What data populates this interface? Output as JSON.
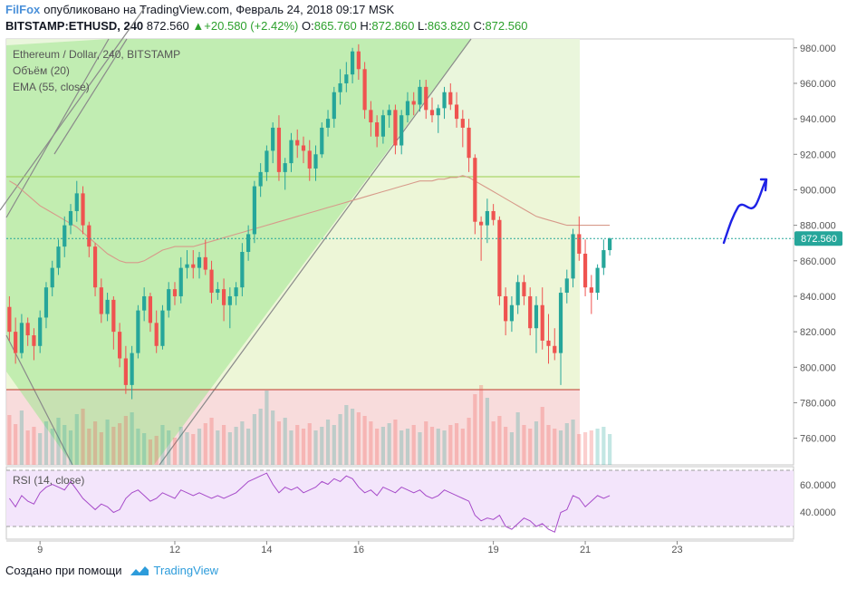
{
  "header": {
    "brand": "FilFox",
    "published_text": "опубликовано на TradingView.com, Февраль 24, 2018 09:17 MSK",
    "symbol_line": "BITSTAMP:ETHUSD, 240",
    "last_price": "872.560",
    "change_arrow": "▲",
    "change": "+20.580 (+2.42%)",
    "o_label": "O:",
    "o_value": "865.760",
    "h_label": "H:",
    "h_value": "872.860",
    "l_label": "L:",
    "l_value": "863.820",
    "c_label": "C:",
    "c_value": "872.560"
  },
  "legend": {
    "title": "Ethereum / Dollar, 240, BITSTAMP",
    "volume": "Объём (20)",
    "ema": "EMA (55, close)",
    "rsi": "RSI (14, close)"
  },
  "footer": {
    "created_with": "Создано при помощи",
    "tradingview": "TradingView"
  },
  "colors": {
    "up": "#26a69a",
    "down": "#ef5350",
    "ema": "#d79a8a",
    "rsi_line": "#a64ac9",
    "rsi_bg": "#f3e5fb",
    "price_label_bg": "#26a69a",
    "drawing": "#1e22e6"
  },
  "chart_data": {
    "type": "candlestick",
    "symbol": "BITSTAMP:ETHUSD",
    "interval": "240",
    "ylim": [
      745,
      985
    ],
    "y_ticks": [
      "980.000",
      "960.000",
      "940.000",
      "920.000",
      "900.000",
      "880.000",
      "860.000",
      "840.000",
      "820.000",
      "800.000",
      "780.000",
      "760.000"
    ],
    "last_price_label": "872.560",
    "last_price": 872.56,
    "x_ticks": [
      "9",
      "12",
      "14",
      "16",
      "19",
      "21",
      "23"
    ],
    "x_tick_index": [
      5,
      27,
      42,
      57,
      79,
      94,
      109
    ],
    "x_range": [
      -0.5,
      128
    ],
    "ohlc": [
      [
        834,
        840,
        815,
        820
      ],
      [
        820,
        828,
        802,
        808
      ],
      [
        808,
        830,
        805,
        825
      ],
      [
        825,
        828,
        812,
        818
      ],
      [
        818,
        822,
        804,
        812
      ],
      [
        812,
        832,
        808,
        828
      ],
      [
        828,
        848,
        822,
        845
      ],
      [
        845,
        860,
        840,
        856
      ],
      [
        856,
        872,
        852,
        868
      ],
      [
        868,
        885,
        862,
        880
      ],
      [
        880,
        892,
        875,
        888
      ],
      [
        888,
        905,
        882,
        898
      ],
      [
        898,
        902,
        875,
        880
      ],
      [
        880,
        882,
        862,
        868
      ],
      [
        868,
        870,
        840,
        845
      ],
      [
        845,
        850,
        825,
        830
      ],
      [
        830,
        842,
        826,
        838
      ],
      [
        838,
        840,
        810,
        820
      ],
      [
        820,
        825,
        800,
        805
      ],
      [
        805,
        812,
        785,
        790
      ],
      [
        790,
        812,
        782,
        808
      ],
      [
        808,
        835,
        805,
        832
      ],
      [
        832,
        845,
        826,
        840
      ],
      [
        840,
        842,
        820,
        825
      ],
      [
        825,
        832,
        808,
        812
      ],
      [
        812,
        835,
        810,
        832
      ],
      [
        832,
        848,
        828,
        844
      ],
      [
        844,
        848,
        835,
        840
      ],
      [
        840,
        862,
        836,
        856
      ],
      [
        856,
        866,
        850,
        858
      ],
      [
        858,
        866,
        850,
        856
      ],
      [
        856,
        865,
        850,
        862
      ],
      [
        862,
        872,
        852,
        855
      ],
      [
        855,
        860,
        836,
        842
      ],
      [
        842,
        848,
        838,
        844
      ],
      [
        844,
        850,
        826,
        835
      ],
      [
        835,
        845,
        822,
        840
      ],
      [
        840,
        848,
        835,
        845
      ],
      [
        845,
        870,
        840,
        865
      ],
      [
        865,
        880,
        860,
        875
      ],
      [
        875,
        905,
        870,
        902
      ],
      [
        902,
        915,
        896,
        910
      ],
      [
        910,
        925,
        905,
        922
      ],
      [
        922,
        938,
        915,
        935
      ],
      [
        935,
        942,
        905,
        910
      ],
      [
        910,
        918,
        900,
        915
      ],
      [
        915,
        932,
        910,
        928
      ],
      [
        928,
        934,
        918,
        925
      ],
      [
        925,
        930,
        915,
        922
      ],
      [
        922,
        928,
        905,
        912
      ],
      [
        912,
        925,
        905,
        920
      ],
      [
        920,
        938,
        918,
        935
      ],
      [
        935,
        945,
        930,
        940
      ],
      [
        940,
        958,
        935,
        955
      ],
      [
        955,
        968,
        948,
        960
      ],
      [
        960,
        972,
        955,
        965
      ],
      [
        965,
        980,
        960,
        978
      ],
      [
        978,
        982,
        962,
        968
      ],
      [
        968,
        972,
        940,
        945
      ],
      [
        945,
        950,
        930,
        938
      ],
      [
        938,
        942,
        924,
        930
      ],
      [
        930,
        945,
        926,
        942
      ],
      [
        942,
        948,
        935,
        945
      ],
      [
        945,
        948,
        920,
        925
      ],
      [
        925,
        945,
        920,
        942
      ],
      [
        942,
        955,
        938,
        950
      ],
      [
        950,
        955,
        942,
        948
      ],
      [
        948,
        962,
        944,
        958
      ],
      [
        958,
        962,
        940,
        945
      ],
      [
        945,
        952,
        938,
        942
      ],
      [
        942,
        948,
        932,
        946
      ],
      [
        946,
        958,
        940,
        955
      ],
      [
        955,
        960,
        945,
        948
      ],
      [
        948,
        955,
        935,
        940
      ],
      [
        940,
        945,
        924,
        935
      ],
      [
        935,
        940,
        910,
        918
      ],
      [
        918,
        920,
        875,
        882
      ],
      [
        882,
        885,
        860,
        880
      ],
      [
        880,
        895,
        870,
        888
      ],
      [
        888,
        892,
        880,
        883
      ],
      [
        883,
        885,
        835,
        840
      ],
      [
        840,
        845,
        818,
        826
      ],
      [
        826,
        840,
        820,
        835
      ],
      [
        835,
        852,
        830,
        848
      ],
      [
        848,
        852,
        835,
        840
      ],
      [
        840,
        845,
        818,
        822
      ],
      [
        822,
        840,
        808,
        835
      ],
      [
        835,
        845,
        810,
        815
      ],
      [
        815,
        830,
        802,
        812
      ],
      [
        812,
        822,
        804,
        808
      ],
      [
        808,
        845,
        790,
        842
      ],
      [
        842,
        855,
        836,
        850
      ],
      [
        850,
        878,
        845,
        875
      ],
      [
        875,
        885,
        860,
        864
      ],
      [
        864,
        872,
        840,
        845
      ],
      [
        845,
        852,
        830,
        842
      ],
      [
        842,
        858,
        838,
        856
      ],
      [
        856,
        872,
        852,
        866
      ],
      [
        866,
        873,
        863,
        872.56
      ]
    ],
    "volume": [
      55,
      45,
      60,
      38,
      42,
      35,
      48,
      40,
      52,
      44,
      38,
      56,
      62,
      40,
      48,
      36,
      50,
      42,
      46,
      54,
      58,
      40,
      35,
      28,
      32,
      44,
      38,
      30,
      42,
      36,
      34,
      40,
      46,
      52,
      38,
      44,
      36,
      42,
      48,
      40,
      56,
      62,
      82,
      60,
      48,
      52,
      38,
      44,
      40,
      46,
      38,
      42,
      50,
      44,
      56,
      66,
      62,
      58,
      54,
      48,
      40,
      42,
      46,
      50,
      38,
      40,
      44,
      36,
      48,
      42,
      40,
      38,
      44,
      46,
      40,
      52,
      78,
      88,
      74,
      48,
      54,
      42,
      36,
      58,
      44,
      40,
      48,
      64,
      44,
      40,
      38,
      46,
      50,
      34,
      36,
      38,
      40,
      42,
      34
    ],
    "ema": [
      905,
      903,
      900,
      897,
      894,
      891,
      889,
      887,
      885,
      883,
      881,
      879,
      876,
      873,
      870,
      867,
      864,
      862,
      860,
      859,
      859,
      859,
      860,
      862,
      864,
      866,
      867,
      868,
      868,
      868,
      868,
      869,
      870,
      871,
      872,
      873,
      874,
      875,
      876,
      877,
      878,
      879,
      880,
      881,
      882,
      883,
      884,
      885,
      886,
      887,
      888,
      889,
      890,
      891,
      892,
      893,
      894,
      895,
      896,
      897,
      898,
      899,
      900,
      901,
      902,
      903,
      904,
      905,
      905,
      905,
      906,
      906,
      907,
      907,
      908,
      907,
      905,
      903,
      901,
      899,
      897,
      895,
      893,
      891,
      889,
      887,
      885,
      884,
      883,
      882,
      881,
      880,
      880,
      880,
      880,
      880,
      880,
      880,
      880
    ],
    "rsi": [
      50,
      44,
      52,
      48,
      46,
      54,
      58,
      60,
      58,
      56,
      62,
      56,
      50,
      46,
      42,
      46,
      44,
      40,
      42,
      50,
      54,
      56,
      52,
      48,
      50,
      54,
      52,
      50,
      56,
      54,
      52,
      54,
      52,
      50,
      52,
      50,
      52,
      54,
      58,
      62,
      64,
      66,
      68,
      60,
      54,
      58,
      56,
      58,
      54,
      56,
      58,
      62,
      60,
      64,
      62,
      66,
      64,
      58,
      54,
      56,
      52,
      58,
      56,
      54,
      58,
      56,
      54,
      56,
      52,
      50,
      52,
      56,
      54,
      52,
      50,
      48,
      38,
      34,
      36,
      35,
      38,
      30,
      28,
      32,
      36,
      34,
      30,
      32,
      28,
      26,
      40,
      42,
      52,
      50,
      44,
      48,
      52,
      50,
      52
    ]
  }
}
